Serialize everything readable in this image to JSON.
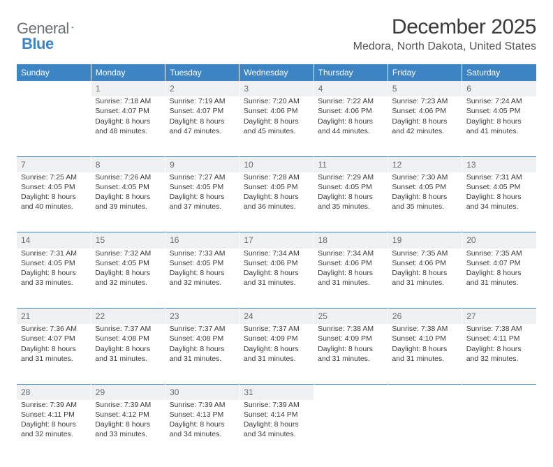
{
  "logo": {
    "text_general": "General",
    "text_blue": "Blue"
  },
  "title": "December 2025",
  "location": "Medora, North Dakota, United States",
  "colors": {
    "header_bg": "#3d84c4",
    "header_text": "#ffffff",
    "daynum_bg": "#eef0f2",
    "daynum_text": "#6a6a6a",
    "rule": "#3d84c4",
    "body_text": "#3a3a3a",
    "page_bg": "#ffffff"
  },
  "fonts": {
    "title_size_pt": 22,
    "location_size_pt": 12,
    "header_size_pt": 9,
    "cell_size_pt": 8
  },
  "days_of_week": [
    "Sunday",
    "Monday",
    "Tuesday",
    "Wednesday",
    "Thursday",
    "Friday",
    "Saturday"
  ],
  "grid": [
    [
      null,
      {
        "num": "1",
        "sunrise": "7:18 AM",
        "sunset": "4:07 PM",
        "daylight": "8 hours and 48 minutes."
      },
      {
        "num": "2",
        "sunrise": "7:19 AM",
        "sunset": "4:07 PM",
        "daylight": "8 hours and 47 minutes."
      },
      {
        "num": "3",
        "sunrise": "7:20 AM",
        "sunset": "4:06 PM",
        "daylight": "8 hours and 45 minutes."
      },
      {
        "num": "4",
        "sunrise": "7:22 AM",
        "sunset": "4:06 PM",
        "daylight": "8 hours and 44 minutes."
      },
      {
        "num": "5",
        "sunrise": "7:23 AM",
        "sunset": "4:06 PM",
        "daylight": "8 hours and 42 minutes."
      },
      {
        "num": "6",
        "sunrise": "7:24 AM",
        "sunset": "4:05 PM",
        "daylight": "8 hours and 41 minutes."
      }
    ],
    [
      {
        "num": "7",
        "sunrise": "7:25 AM",
        "sunset": "4:05 PM",
        "daylight": "8 hours and 40 minutes."
      },
      {
        "num": "8",
        "sunrise": "7:26 AM",
        "sunset": "4:05 PM",
        "daylight": "8 hours and 39 minutes."
      },
      {
        "num": "9",
        "sunrise": "7:27 AM",
        "sunset": "4:05 PM",
        "daylight": "8 hours and 37 minutes."
      },
      {
        "num": "10",
        "sunrise": "7:28 AM",
        "sunset": "4:05 PM",
        "daylight": "8 hours and 36 minutes."
      },
      {
        "num": "11",
        "sunrise": "7:29 AM",
        "sunset": "4:05 PM",
        "daylight": "8 hours and 35 minutes."
      },
      {
        "num": "12",
        "sunrise": "7:30 AM",
        "sunset": "4:05 PM",
        "daylight": "8 hours and 35 minutes."
      },
      {
        "num": "13",
        "sunrise": "7:31 AM",
        "sunset": "4:05 PM",
        "daylight": "8 hours and 34 minutes."
      }
    ],
    [
      {
        "num": "14",
        "sunrise": "7:31 AM",
        "sunset": "4:05 PM",
        "daylight": "8 hours and 33 minutes."
      },
      {
        "num": "15",
        "sunrise": "7:32 AM",
        "sunset": "4:05 PM",
        "daylight": "8 hours and 32 minutes."
      },
      {
        "num": "16",
        "sunrise": "7:33 AM",
        "sunset": "4:05 PM",
        "daylight": "8 hours and 32 minutes."
      },
      {
        "num": "17",
        "sunrise": "7:34 AM",
        "sunset": "4:06 PM",
        "daylight": "8 hours and 31 minutes."
      },
      {
        "num": "18",
        "sunrise": "7:34 AM",
        "sunset": "4:06 PM",
        "daylight": "8 hours and 31 minutes."
      },
      {
        "num": "19",
        "sunrise": "7:35 AM",
        "sunset": "4:06 PM",
        "daylight": "8 hours and 31 minutes."
      },
      {
        "num": "20",
        "sunrise": "7:35 AM",
        "sunset": "4:07 PM",
        "daylight": "8 hours and 31 minutes."
      }
    ],
    [
      {
        "num": "21",
        "sunrise": "7:36 AM",
        "sunset": "4:07 PM",
        "daylight": "8 hours and 31 minutes."
      },
      {
        "num": "22",
        "sunrise": "7:37 AM",
        "sunset": "4:08 PM",
        "daylight": "8 hours and 31 minutes."
      },
      {
        "num": "23",
        "sunrise": "7:37 AM",
        "sunset": "4:08 PM",
        "daylight": "8 hours and 31 minutes."
      },
      {
        "num": "24",
        "sunrise": "7:37 AM",
        "sunset": "4:09 PM",
        "daylight": "8 hours and 31 minutes."
      },
      {
        "num": "25",
        "sunrise": "7:38 AM",
        "sunset": "4:09 PM",
        "daylight": "8 hours and 31 minutes."
      },
      {
        "num": "26",
        "sunrise": "7:38 AM",
        "sunset": "4:10 PM",
        "daylight": "8 hours and 31 minutes."
      },
      {
        "num": "27",
        "sunrise": "7:38 AM",
        "sunset": "4:11 PM",
        "daylight": "8 hours and 32 minutes."
      }
    ],
    [
      {
        "num": "28",
        "sunrise": "7:39 AM",
        "sunset": "4:11 PM",
        "daylight": "8 hours and 32 minutes."
      },
      {
        "num": "29",
        "sunrise": "7:39 AM",
        "sunset": "4:12 PM",
        "daylight": "8 hours and 33 minutes."
      },
      {
        "num": "30",
        "sunrise": "7:39 AM",
        "sunset": "4:13 PM",
        "daylight": "8 hours and 34 minutes."
      },
      {
        "num": "31",
        "sunrise": "7:39 AM",
        "sunset": "4:14 PM",
        "daylight": "8 hours and 34 minutes."
      },
      null,
      null,
      null
    ]
  ],
  "labels": {
    "sunrise_prefix": "Sunrise: ",
    "sunset_prefix": "Sunset: ",
    "daylight_prefix": "Daylight: "
  }
}
